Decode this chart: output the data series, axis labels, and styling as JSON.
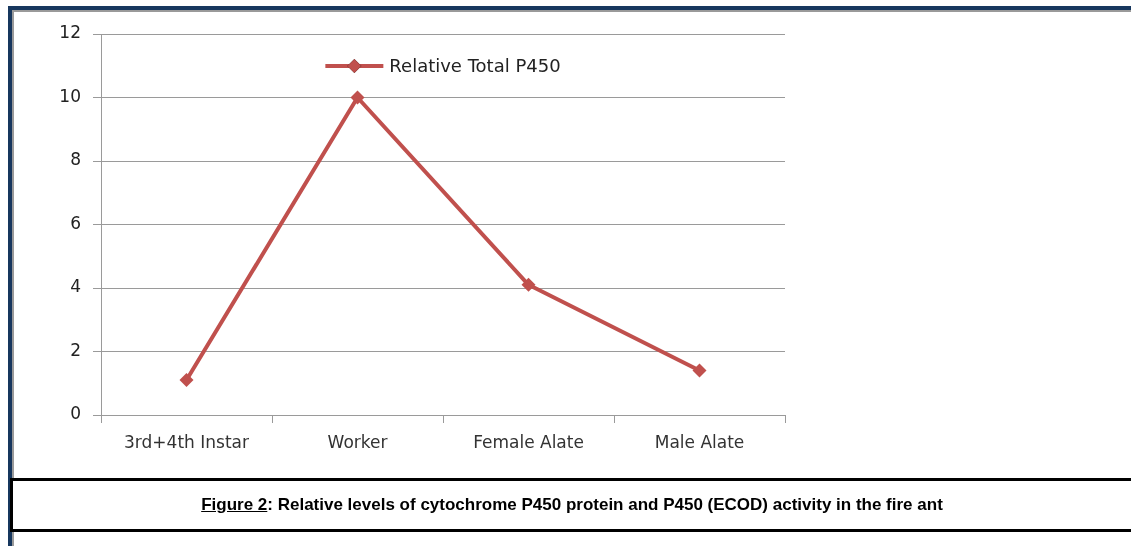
{
  "chart_data": {
    "type": "line",
    "categories": [
      "3rd+4th Instar",
      "Worker",
      "Female Alate",
      "Male Alate"
    ],
    "series": [
      {
        "name": "Relative Total P450",
        "color": "#c0504d",
        "values": [
          1.1,
          10,
          4.1,
          1.4
        ]
      }
    ],
    "ylim": [
      0,
      12
    ],
    "yticks": [
      0,
      2,
      4,
      6,
      8,
      10,
      12
    ],
    "grid": "y",
    "legend": "top",
    "marker": "diamond",
    "line_style": "solid",
    "annotations": [
      "Figure 2: Relative levels of cytochrome P450 protein and P450 (ECOD) activity in the fire ant"
    ]
  }
}
